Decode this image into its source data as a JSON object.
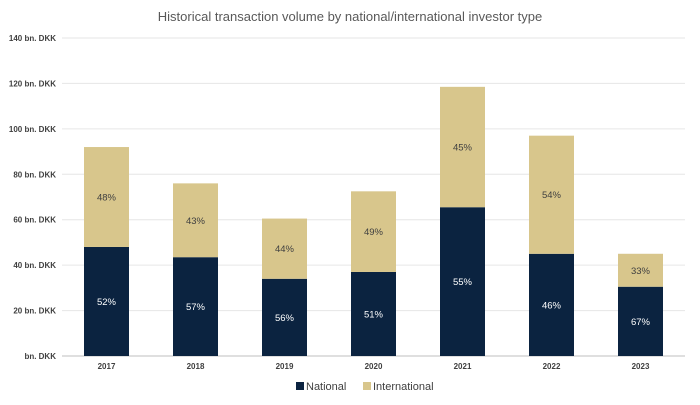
{
  "chart_data": {
    "type": "bar",
    "stacked": true,
    "title": "Historical transaction volume by national/international investor type",
    "xlabel": "",
    "ylabel": "",
    "y_ticks": [
      "bn. DKK",
      "20 bn. DKK",
      "40 bn. DKK",
      "60 bn. DKK",
      "80 bn. DKK",
      "100 bn. DKK",
      "120 bn. DKK",
      "140 bn. DKK"
    ],
    "ylim": [
      0,
      140
    ],
    "grid": true,
    "legend_position": "bottom",
    "categories": [
      "2017",
      "2018",
      "2019",
      "2020",
      "2021",
      "2022",
      "2023"
    ],
    "series": [
      {
        "name": "National",
        "color": "#0b2340",
        "values": [
          48,
          43.5,
          34,
          37,
          65.5,
          45,
          30.5
        ],
        "labels": [
          "52%",
          "57%",
          "56%",
          "51%",
          "55%",
          "46%",
          "67%"
        ]
      },
      {
        "name": "International",
        "color": "#d8c68c",
        "values": [
          44,
          32.5,
          26.5,
          35.5,
          53,
          52,
          14.5
        ],
        "labels": [
          "48%",
          "43%",
          "44%",
          "49%",
          "45%",
          "54%",
          "33%"
        ]
      }
    ]
  }
}
